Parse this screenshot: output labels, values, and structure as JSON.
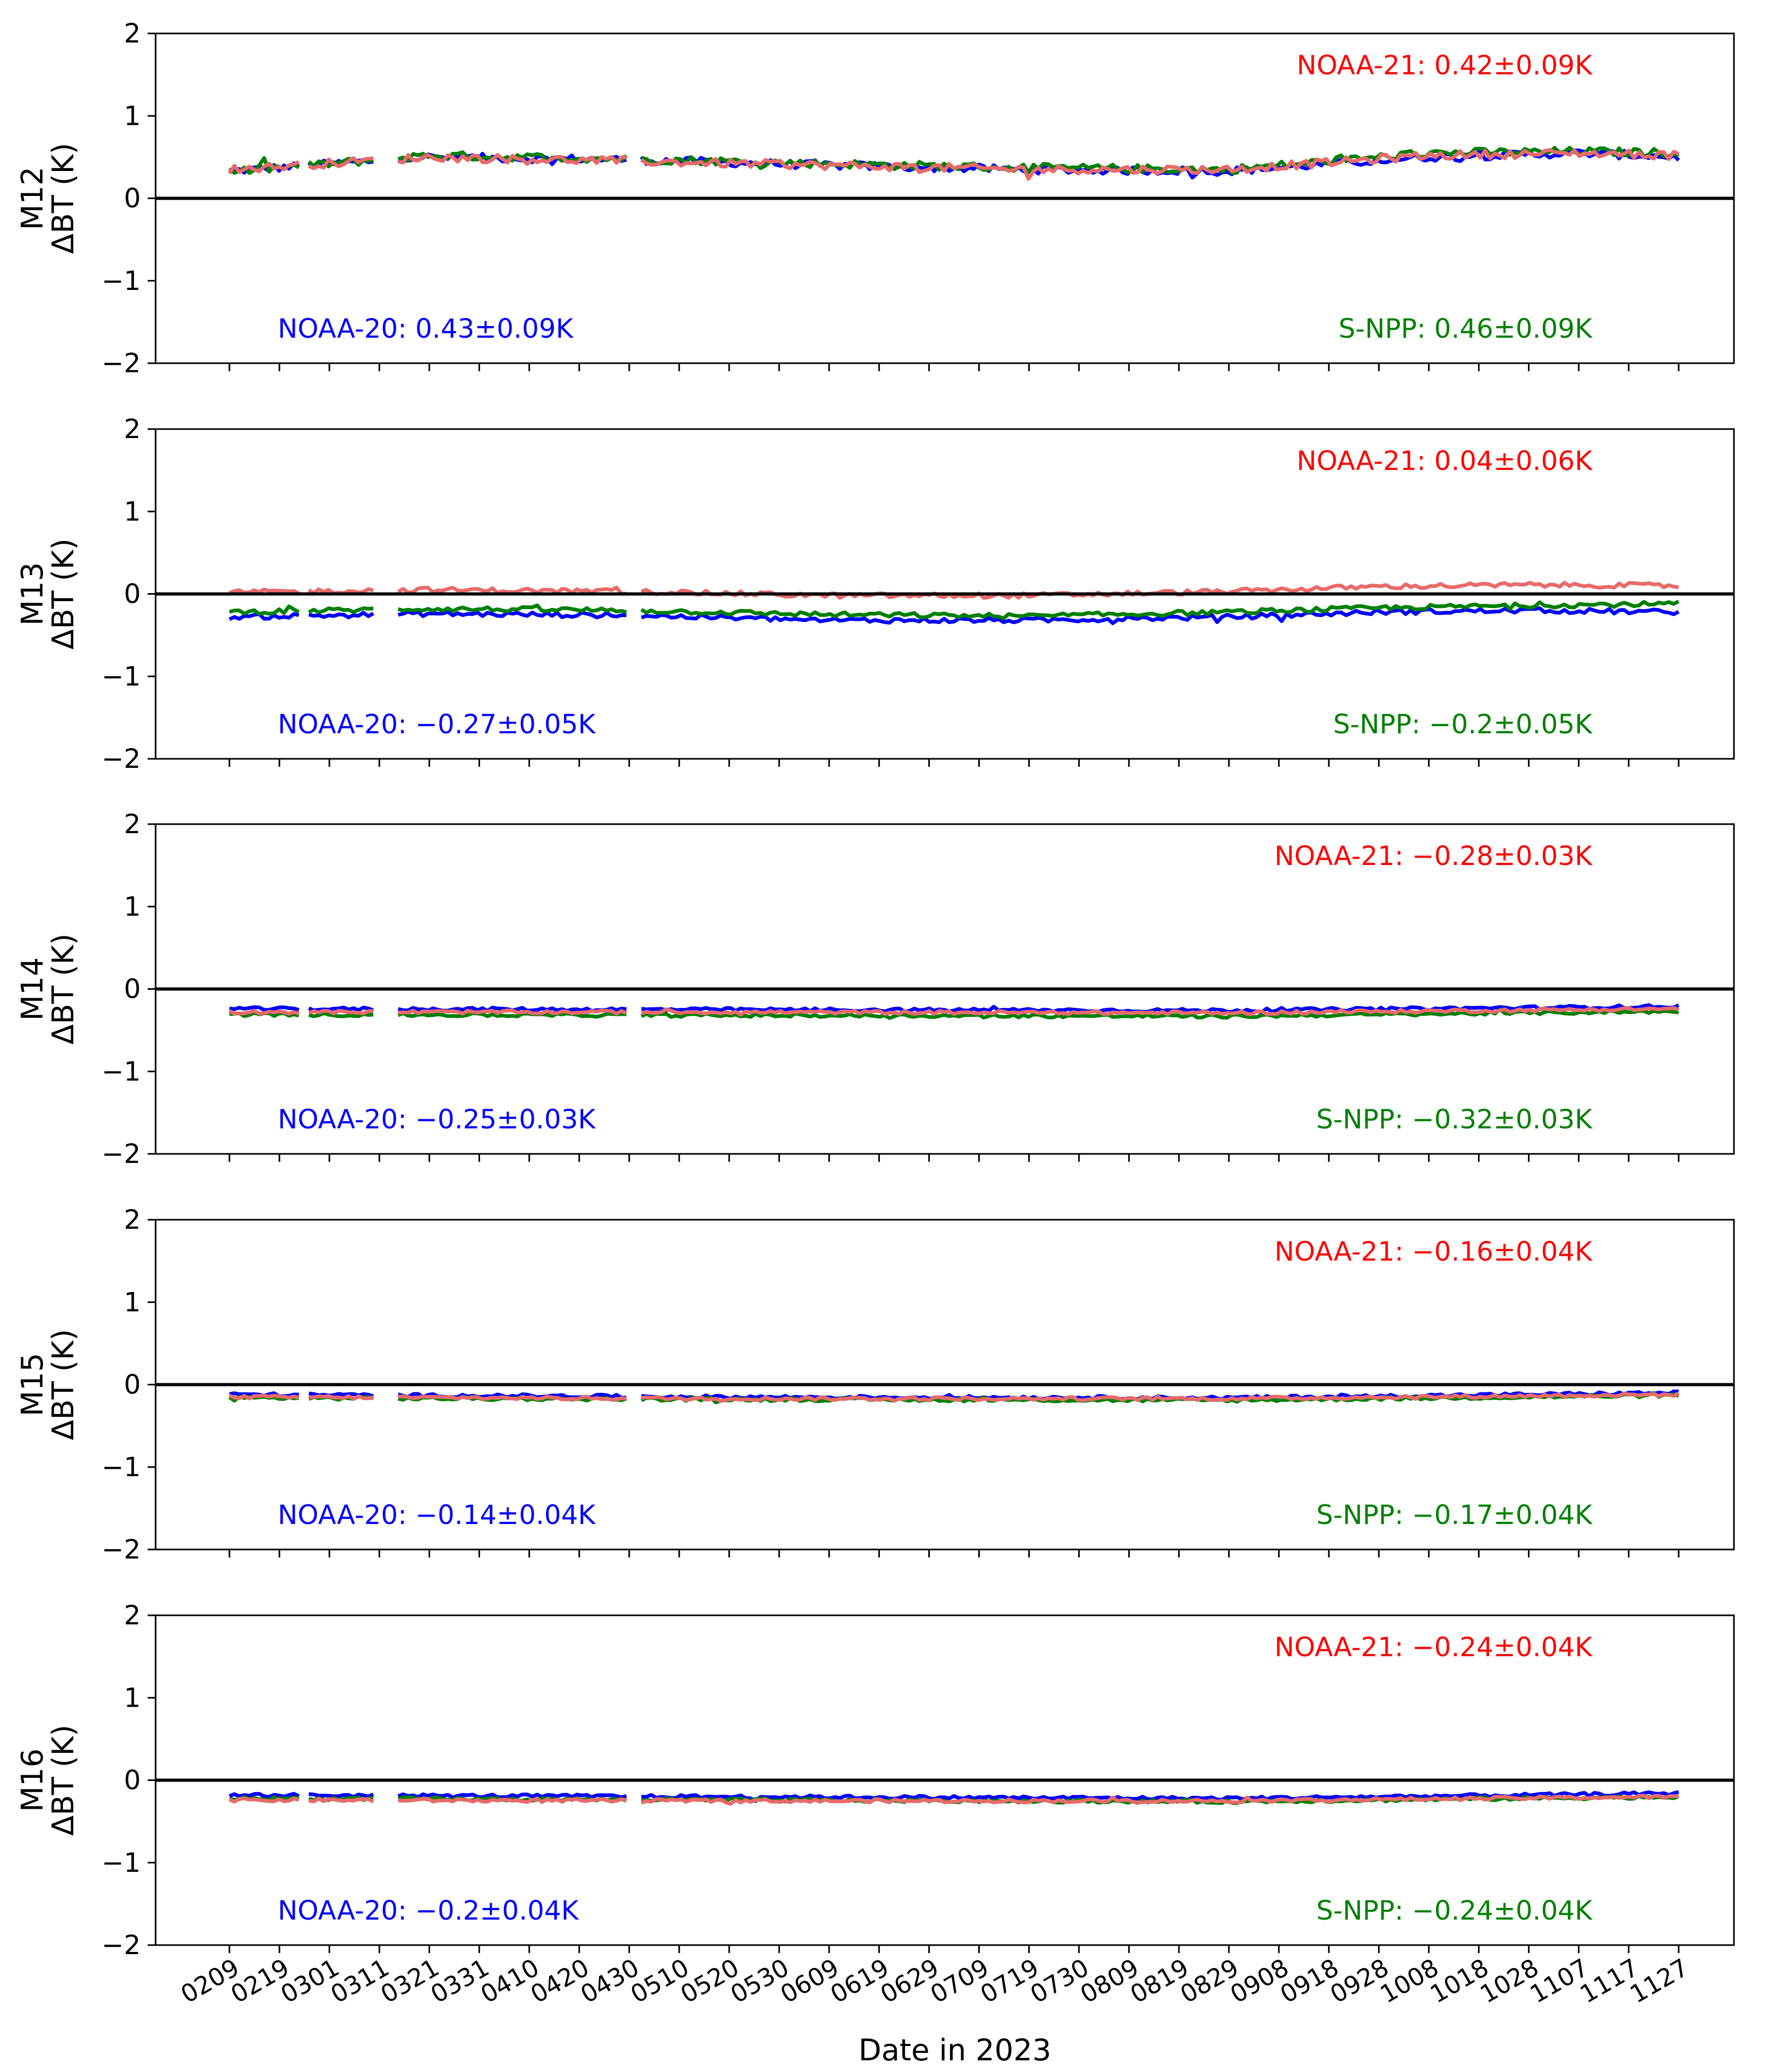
{
  "chart_data": {
    "type": "line",
    "xlabel": "Date in 2023",
    "ylim": [
      -2,
      2
    ],
    "yticks": [
      "2",
      "1",
      "0",
      "−1",
      "−2"
    ],
    "xtick_labels": [
      "0209",
      "0219",
      "0301",
      "0311",
      "0321",
      "0331",
      "0410",
      "0420",
      "0430",
      "0510",
      "0520",
      "0530",
      "0609",
      "0619",
      "0629",
      "0709",
      "0719",
      "0730",
      "0809",
      "0819",
      "0829",
      "0908",
      "0918",
      "0928",
      "1008",
      "1018",
      "1028",
      "1107",
      "1117",
      "1127"
    ],
    "reference_line_y": 0,
    "series_colors": {
      "NOAA-20": "#0000ff",
      "S-NPP": "#008000",
      "NOAA-21": "#e86a6a"
    },
    "stat_colors": {
      "NOAA-20": "#0000ff",
      "S-NPP": "#008000",
      "NOAA-21": "#ff0000"
    },
    "panels": [
      {
        "band": "M12",
        "ylabel": "ΔBT (K)",
        "stats": {
          "noaa21": "NOAA-21: 0.42±0.09K",
          "noaa20": "NOAA-20: 0.43±0.09K",
          "snpp": "S-NPP: 0.46±0.09K"
        },
        "series": [
          {
            "name": "NOAA-20",
            "knots": [
              [
                0,
                0.33
              ],
              [
                4,
                0.5
              ],
              [
                8,
                0.47
              ],
              [
                12,
                0.4
              ],
              [
                16,
                0.35
              ],
              [
                20,
                0.33
              ],
              [
                24,
                0.5
              ],
              [
                27,
                0.55
              ],
              [
                29,
                0.5
              ]
            ],
            "noise": 0.05
          },
          {
            "name": "S-NPP",
            "knots": [
              [
                0,
                0.32
              ],
              [
                4,
                0.52
              ],
              [
                8,
                0.48
              ],
              [
                12,
                0.42
              ],
              [
                16,
                0.37
              ],
              [
                20,
                0.35
              ],
              [
                24,
                0.55
              ],
              [
                27,
                0.57
              ],
              [
                29,
                0.55
              ]
            ],
            "noise": 0.05
          },
          {
            "name": "NOAA-21",
            "knots": [
              [
                0,
                0.35
              ],
              [
                4,
                0.5
              ],
              [
                8,
                0.45
              ],
              [
                12,
                0.4
              ],
              [
                16,
                0.35
              ],
              [
                20,
                0.35
              ],
              [
                24,
                0.52
              ],
              [
                27,
                0.55
              ],
              [
                29,
                0.52
              ]
            ],
            "noise": 0.05
          }
        ]
      },
      {
        "band": "M13",
        "ylabel": "ΔBT (K)",
        "stats": {
          "noaa21": "NOAA-21: 0.04±0.06K",
          "noaa20": "NOAA-20: −0.27±0.05K",
          "snpp": "S-NPP: −0.2±0.05K"
        },
        "series": [
          {
            "name": "NOAA-20",
            "knots": [
              [
                0,
                -0.28
              ],
              [
                4,
                -0.24
              ],
              [
                8,
                -0.26
              ],
              [
                12,
                -0.32
              ],
              [
                16,
                -0.32
              ],
              [
                20,
                -0.28
              ],
              [
                23,
                -0.22
              ],
              [
                26,
                -0.2
              ],
              [
                29,
                -0.22
              ]
            ],
            "noise": 0.03
          },
          {
            "name": "S-NPP",
            "knots": [
              [
                0,
                -0.22
              ],
              [
                4,
                -0.18
              ],
              [
                8,
                -0.2
              ],
              [
                12,
                -0.25
              ],
              [
                16,
                -0.27
              ],
              [
                20,
                -0.22
              ],
              [
                23,
                -0.17
              ],
              [
                26,
                -0.14
              ],
              [
                29,
                -0.12
              ]
            ],
            "noise": 0.03
          },
          {
            "name": "NOAA-21",
            "knots": [
              [
                0,
                0.02
              ],
              [
                4,
                0.05
              ],
              [
                8,
                0.03
              ],
              [
                12,
                -0.02
              ],
              [
                16,
                -0.02
              ],
              [
                20,
                0.03
              ],
              [
                23,
                0.09
              ],
              [
                26,
                0.11
              ],
              [
                29,
                0.1
              ]
            ],
            "noise": 0.03
          }
        ]
      },
      {
        "band": "M14",
        "ylabel": "ΔBT (K)",
        "stats": {
          "noaa21": "NOAA-21: −0.28±0.03K",
          "noaa20": "NOAA-20: −0.25±0.03K",
          "snpp": "S-NPP: −0.32±0.03K"
        },
        "series": [
          {
            "name": "NOAA-20",
            "knots": [
              [
                0,
                -0.24
              ],
              [
                10,
                -0.25
              ],
              [
                20,
                -0.26
              ],
              [
                29,
                -0.21
              ]
            ],
            "noise": 0.02
          },
          {
            "name": "S-NPP",
            "knots": [
              [
                0,
                -0.31
              ],
              [
                10,
                -0.32
              ],
              [
                20,
                -0.33
              ],
              [
                29,
                -0.27
              ]
            ],
            "noise": 0.02
          },
          {
            "name": "NOAA-21",
            "knots": [
              [
                0,
                -0.28
              ],
              [
                10,
                -0.28
              ],
              [
                20,
                -0.29
              ],
              [
                29,
                -0.24
              ]
            ],
            "noise": 0.02
          }
        ]
      },
      {
        "band": "M15",
        "ylabel": "ΔBT (K)",
        "stats": {
          "noaa21": "NOAA-21: −0.16±0.04K",
          "noaa20": "NOAA-20: −0.14±0.04K",
          "snpp": "S-NPP: −0.17±0.04K"
        },
        "series": [
          {
            "name": "NOAA-20",
            "knots": [
              [
                0,
                -0.12
              ],
              [
                10,
                -0.15
              ],
              [
                20,
                -0.16
              ],
              [
                29,
                -0.1
              ]
            ],
            "noise": 0.02
          },
          {
            "name": "S-NPP",
            "knots": [
              [
                0,
                -0.16
              ],
              [
                10,
                -0.18
              ],
              [
                20,
                -0.19
              ],
              [
                29,
                -0.13
              ]
            ],
            "noise": 0.02
          },
          {
            "name": "NOAA-21",
            "knots": [
              [
                0,
                -0.15
              ],
              [
                10,
                -0.17
              ],
              [
                20,
                -0.17
              ],
              [
                29,
                -0.12
              ]
            ],
            "noise": 0.02
          }
        ]
      },
      {
        "band": "M16",
        "ylabel": "ΔBT (K)",
        "stats": {
          "noaa21": "NOAA-21: −0.24±0.04K",
          "noaa20": "NOAA-20: −0.2±0.04K",
          "snpp": "S-NPP: −0.24±0.04K"
        },
        "series": [
          {
            "name": "NOAA-20",
            "knots": [
              [
                0,
                -0.18
              ],
              [
                10,
                -0.2
              ],
              [
                20,
                -0.22
              ],
              [
                29,
                -0.16
              ]
            ],
            "noise": 0.02
          },
          {
            "name": "S-NPP",
            "knots": [
              [
                0,
                -0.22
              ],
              [
                10,
                -0.24
              ],
              [
                20,
                -0.26
              ],
              [
                29,
                -0.2
              ]
            ],
            "noise": 0.02
          },
          {
            "name": "NOAA-21",
            "knots": [
              [
                0,
                -0.24
              ],
              [
                10,
                -0.25
              ],
              [
                20,
                -0.25
              ],
              [
                29,
                -0.2
              ]
            ],
            "noise": 0.02
          }
        ]
      }
    ],
    "data_gaps_tick_index": [
      [
        1.4,
        1.55
      ],
      [
        2.9,
        3.35
      ],
      [
        7.95,
        8.15
      ]
    ]
  }
}
